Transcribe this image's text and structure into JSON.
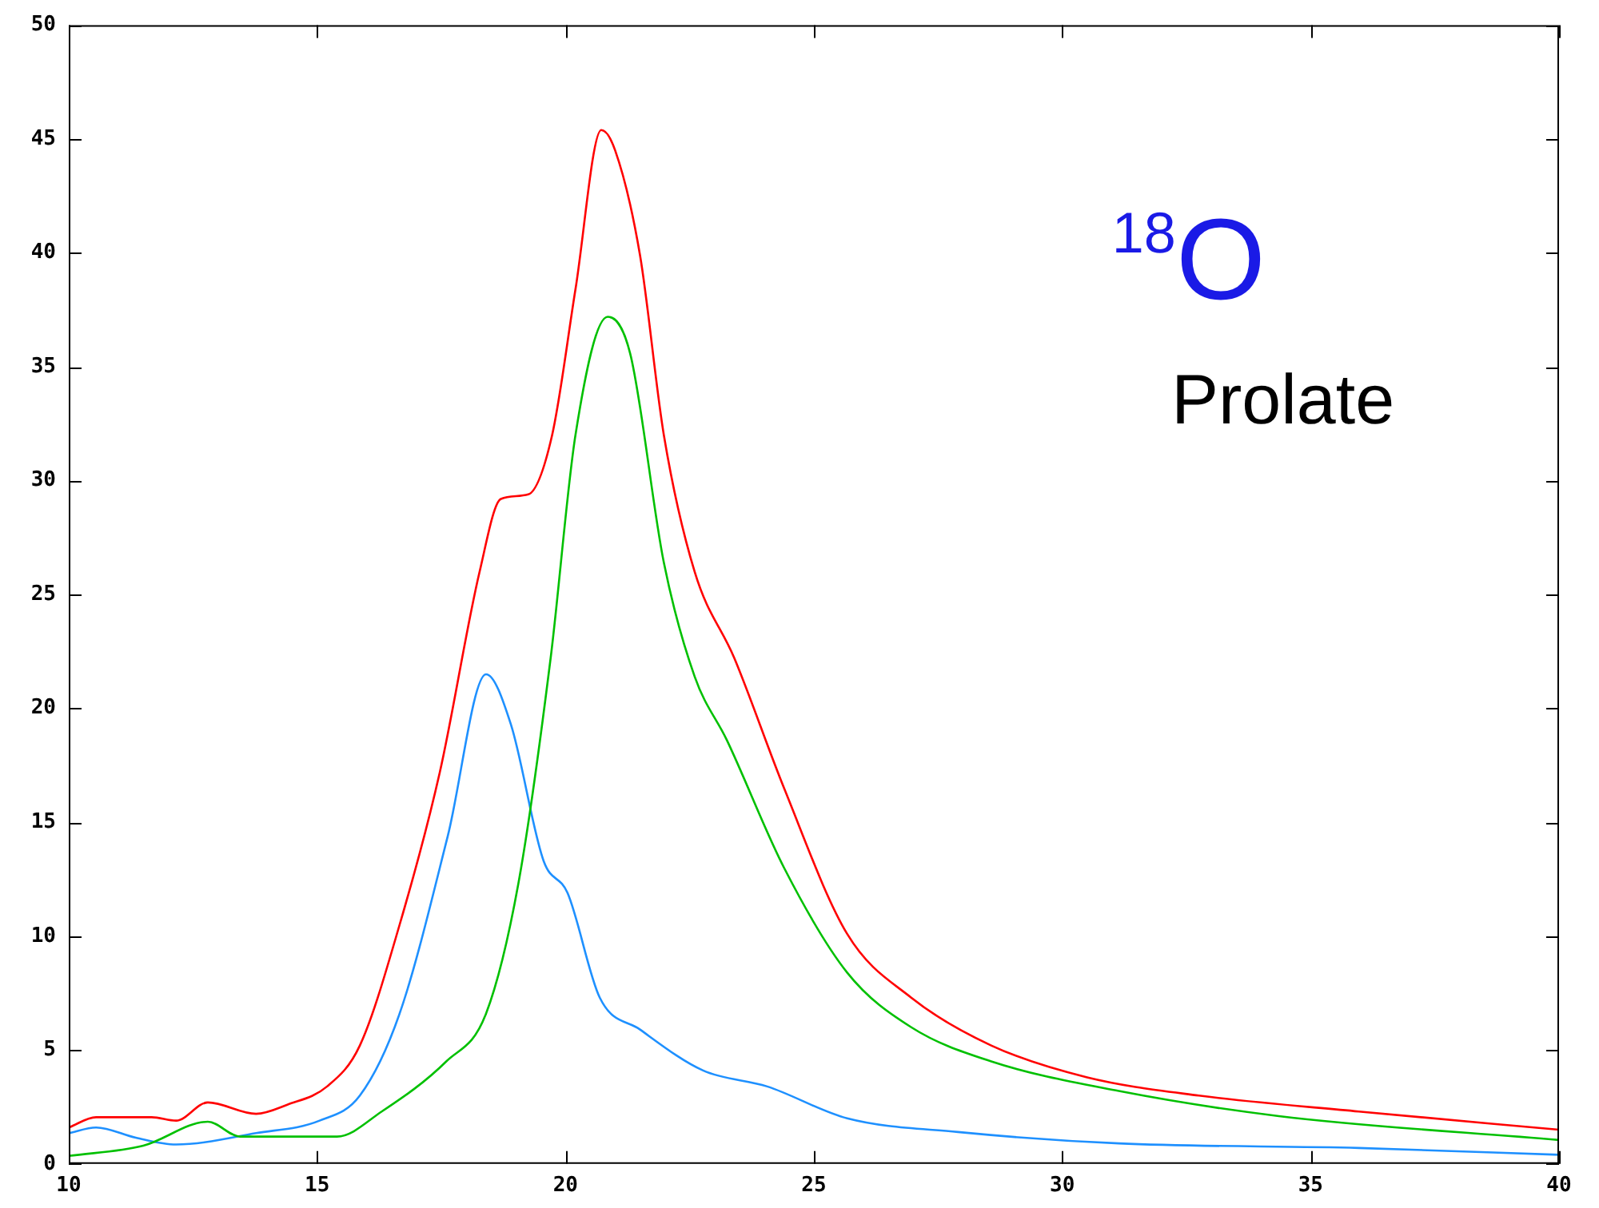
{
  "chart_data": {
    "type": "line",
    "annotations": [
      "$^{18}$O",
      "Prolate"
    ],
    "xlim": [
      10,
      40
    ],
    "xticks": [
      10,
      15,
      20,
      25,
      30,
      35,
      40
    ],
    "ylim": [
      0,
      50
    ],
    "yticks": [
      0,
      5,
      10,
      15,
      20,
      25,
      30,
      35,
      40,
      45,
      50
    ],
    "grid": false,
    "legend": false,
    "marker": "none",
    "line_style": "solid",
    "series": [
      {
        "color": "#ff0000",
        "x": [
          10,
          10.55,
          11.67,
          12.16,
          12.8,
          13.77,
          14.4,
          15.2,
          15.86,
          16.66,
          17.47,
          18.27,
          18.7,
          19.25,
          19.73,
          20.2,
          20.72,
          21,
          21.5,
          21.98,
          22.6,
          23.4,
          24.4,
          25.67,
          26.96,
          28.57,
          30.5,
          32.75,
          35.97,
          40
        ],
        "values": [
          1.6,
          2.05,
          2.05,
          1.9,
          2.7,
          2.2,
          2.6,
          3.4,
          5.2,
          10.5,
          17.2,
          26,
          29.2,
          29.4,
          32,
          38.4,
          45.4,
          44.5,
          39.9,
          32,
          26,
          22.2,
          16.5,
          10.1,
          7.3,
          5.2,
          3.8,
          3,
          2.3,
          1.5
        ]
      },
      {
        "color": "#00c000",
        "x": [
          10,
          11.5,
          12.8,
          13.45,
          15.4,
          16.3,
          17.6,
          18.4,
          19.05,
          19.7,
          20.2,
          20.85,
          21.3,
          21.98,
          22.6,
          23.25,
          24.4,
          25.67,
          26.96,
          28.57,
          31.14,
          34.36,
          40
        ],
        "values": [
          0.35,
          0.8,
          1.85,
          1.2,
          1.2,
          2.3,
          4.5,
          6.6,
          12.3,
          22.2,
          32,
          37.2,
          35.6,
          26.4,
          21.4,
          18.6,
          13,
          8.4,
          6,
          4.5,
          3.2,
          2.1,
          1.05
        ]
      },
      {
        "color": "#1e90ff",
        "x": [
          10,
          10.55,
          11.35,
          12.16,
          13.77,
          15.05,
          15.86,
          16.66,
          17.63,
          18.4,
          18.9,
          19.56,
          20.04,
          20.69,
          21.5,
          22.77,
          24.06,
          25.67,
          27.9,
          31.14,
          35.97,
          40
        ],
        "values": [
          1.35,
          1.6,
          1.15,
          0.85,
          1.35,
          1.9,
          3,
          6.6,
          14.4,
          21.5,
          19.3,
          13.3,
          11.9,
          7.3,
          5.9,
          4.1,
          3.4,
          2,
          1.4,
          0.9,
          0.7,
          0.4
        ]
      }
    ]
  }
}
